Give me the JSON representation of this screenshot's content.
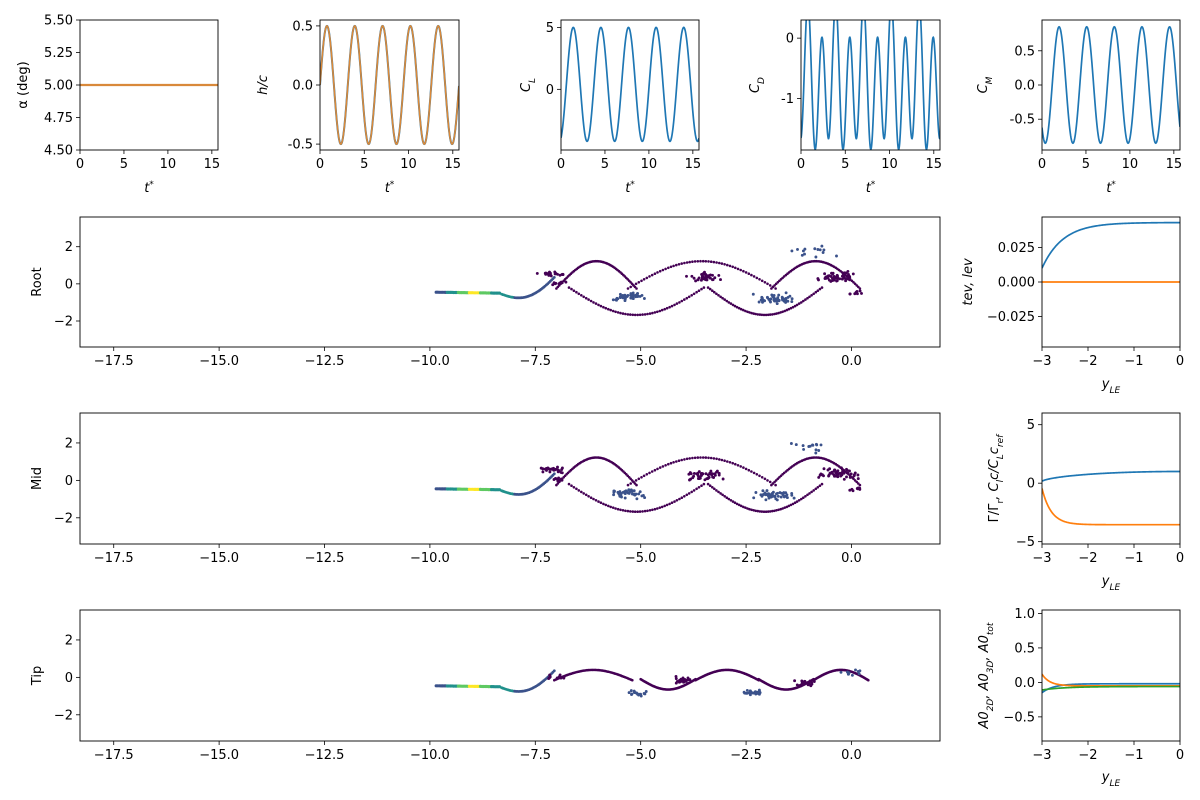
{
  "colors": {
    "blue": "#1f77b4",
    "orange": "#ff7f0e",
    "green": "#2ca02c",
    "brownish": "#d9893a",
    "dark_purple": "#440154",
    "slate_blue": "#3b528b",
    "teal": "#21918c",
    "green_yellow": "#5ec962",
    "yellow": "#fde725"
  },
  "row_labels": {
    "root": "Root",
    "mid": "Mid",
    "tip": "Tip"
  },
  "axis_labels": {
    "t_star": "t*",
    "alpha": "α (deg)",
    "h_over_c": "h/c",
    "cl": "C_L",
    "cd": "C_D",
    "cm": "C_M",
    "y_le": "y_LE",
    "tev_lev": "tev, lev",
    "gamma": "Γ/Γr, Cl c/C_L c_ref",
    "a0": "A0_2D, A0_3D, A0_tot"
  },
  "chart_data": [
    {
      "id": "alpha",
      "type": "line",
      "ylabel": "α (deg)",
      "xlabel": "t*",
      "xlim": [
        0,
        15.7
      ],
      "ylim": [
        4.5,
        5.5
      ],
      "xticks": [
        "0",
        "5",
        "10",
        "15"
      ],
      "yticks": [
        "4.50",
        "4.75",
        "5.00",
        "5.25",
        "5.50"
      ],
      "series": [
        {
          "color": "#d9893a",
          "values": "constant 5.0 deg over t* 0–15.7"
        }
      ]
    },
    {
      "id": "h",
      "type": "line",
      "ylabel": "h/c",
      "xlabel": "t*",
      "xlim": [
        0,
        15.7
      ],
      "ylim": [
        -0.55,
        0.55
      ],
      "xticks": [
        "0",
        "5",
        "10",
        "15"
      ],
      "yticks": [
        "-0.5",
        "0.0",
        "0.5"
      ],
      "series": [
        {
          "color": "#d9893a",
          "amplitude": 0.5,
          "period": 3.14,
          "phase": "sine"
        }
      ]
    },
    {
      "id": "cl",
      "type": "line",
      "ylabel": "C_L",
      "xlabel": "t*",
      "xlim": [
        0,
        15.7
      ],
      "ylim": [
        -4.9,
        5.6
      ],
      "xticks": [
        "0",
        "5",
        "10",
        "15"
      ],
      "yticks": [
        "0",
        "5"
      ],
      "series": [
        {
          "color": "#1f77b4",
          "amplitude": 5.0,
          "period": 3.14,
          "start": -4.2
        }
      ]
    },
    {
      "id": "cd",
      "type": "line",
      "ylabel": "C_D",
      "xlabel": "t*",
      "xlim": [
        0,
        15.7
      ],
      "ylim": [
        -1.85,
        0.3
      ],
      "xticks": [
        "0",
        "5",
        "10",
        "15"
      ],
      "yticks": [
        "-1",
        "0"
      ],
      "series": [
        {
          "color": "#1f77b4",
          "period": 1.57,
          "peaks": [
            0.3,
            -0.3
          ],
          "minimum": -1.75
        }
      ]
    },
    {
      "id": "cm",
      "type": "line",
      "ylabel": "C_M",
      "xlabel": "t*",
      "xlim": [
        0,
        15.7
      ],
      "ylim": [
        -0.95,
        0.95
      ],
      "xticks": [
        "0",
        "5",
        "10",
        "15"
      ],
      "yticks": [
        "-0.5",
        "0.0",
        "0.5"
      ],
      "series": [
        {
          "color": "#1f77b4",
          "amplitude": 0.85,
          "period": 3.14,
          "start": 0.6
        }
      ]
    },
    {
      "id": "wake_root",
      "type": "scatter",
      "ylabel": "Root",
      "xlim": [
        -18.3,
        2.1
      ],
      "ylim": [
        -3.4,
        3.6
      ],
      "xticks": [
        "−17.5",
        "−15.0",
        "−12.5",
        "−10.0",
        "−7.5",
        "−5.0",
        "−2.5",
        "0.0"
      ],
      "yticks": [
        "−2",
        "0",
        "2"
      ]
    },
    {
      "id": "wake_mid",
      "type": "scatter",
      "ylabel": "Mid",
      "xlim": [
        -18.3,
        2.1
      ],
      "ylim": [
        -3.4,
        3.6
      ],
      "xticks": [
        "−17.5",
        "−15.0",
        "−12.5",
        "−10.0",
        "−7.5",
        "−5.0",
        "−2.5",
        "0.0"
      ],
      "yticks": [
        "−2",
        "0",
        "2"
      ]
    },
    {
      "id": "wake_tip",
      "type": "scatter",
      "ylabel": "Tip",
      "xlim": [
        -18.3,
        2.1
      ],
      "ylim": [
        -3.4,
        3.6
      ],
      "xticks": [
        "−17.5",
        "−15.0",
        "−12.5",
        "−10.0",
        "−7.5",
        "−5.0",
        "−2.5",
        "0.0"
      ],
      "yticks": [
        "−2",
        "0",
        "2"
      ]
    },
    {
      "id": "tevlev",
      "type": "line",
      "ylabel": "tev, lev",
      "xlabel": "y_LE",
      "xlim": [
        -3,
        0
      ],
      "ylim": [
        -0.047,
        0.047
      ],
      "xticks": [
        "−3",
        "−2",
        "−1",
        "0"
      ],
      "yticks": [
        "−0.025",
        "0.000",
        "0.025"
      ],
      "series": [
        {
          "color": "#1f77b4",
          "from": 0.01,
          "to": 0.043
        },
        {
          "color": "#ff7f0e",
          "constant": 0.0
        }
      ]
    },
    {
      "id": "gamma",
      "type": "line",
      "ylabel": "Γ/Γr, Cl c/C_L c_ref",
      "xlabel": "y_LE",
      "xlim": [
        -3,
        0
      ],
      "ylim": [
        -5.2,
        6.0
      ],
      "xticks": [
        "−3",
        "−2",
        "−1",
        "0"
      ],
      "yticks": [
        "−5",
        "0",
        "5"
      ],
      "series": [
        {
          "color": "#1f77b4",
          "from": 0.0,
          "to": 1.0
        },
        {
          "color": "#ff7f0e",
          "from": -0.5,
          "to": -3.5
        }
      ]
    },
    {
      "id": "a0",
      "type": "line",
      "ylabel": "A0_2D, A0_3D, A0_tot",
      "xlabel": "y_LE",
      "xlim": [
        -3,
        0
      ],
      "ylim": [
        -0.85,
        1.05
      ],
      "xticks": [
        "−3",
        "−2",
        "−1",
        "0"
      ],
      "yticks": [
        "−0.5",
        "0.0",
        "0.5",
        "1.0"
      ],
      "series": [
        {
          "color": "#1f77b4",
          "from": -0.15,
          "to": -0.02
        },
        {
          "color": "#ff7f0e",
          "from": 0.12,
          "to": -0.05
        },
        {
          "color": "#2ca02c",
          "from": -0.1,
          "to": -0.06
        }
      ]
    }
  ]
}
